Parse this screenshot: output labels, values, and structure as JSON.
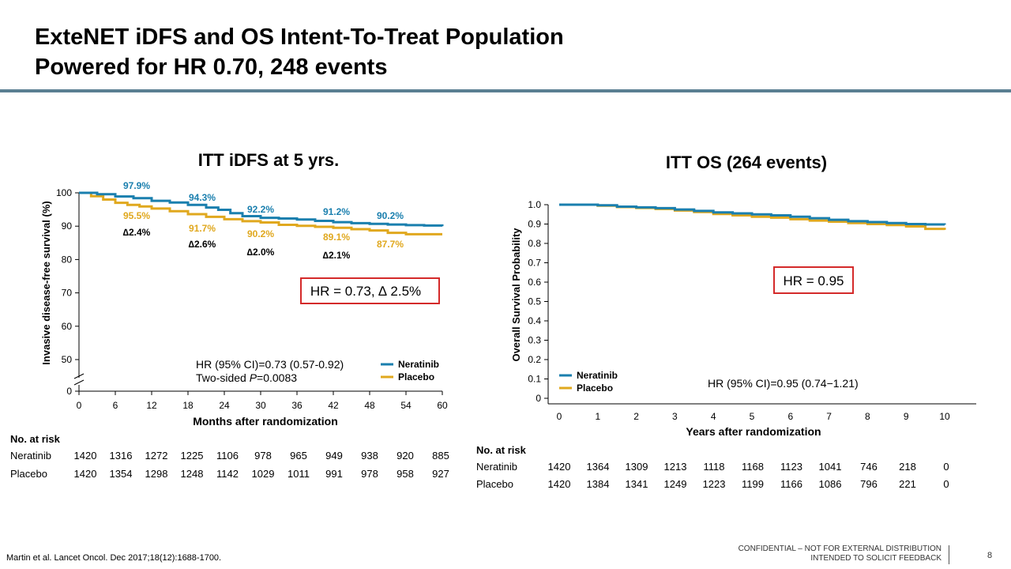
{
  "slide": {
    "title_line1": "ExteNET iDFS and OS Intent-To-Treat Population",
    "title_line2": "Powered for HR 0.70, 248 events",
    "footnote": "Martin et al. Lancet Oncol. Dec 2017;18(12):1688-1700.",
    "confidential_line1": "CONFIDENTIAL – NOT FOR EXTERNAL DISTRIBUTION",
    "confidential_line2": "INTENDED TO SOLICIT FEEDBACK",
    "page_number": "8",
    "rule_color": "#5a7f92"
  },
  "colors": {
    "neratinib": "#1a7fae",
    "placebo": "#e0a81e",
    "hr_box": "#d42a2a"
  },
  "chart_data": [
    {
      "type": "line",
      "title": "ITT iDFS at 5 yrs.",
      "xlabel": "Months after randomization",
      "ylabel": "Invasive disease-free survival (%)",
      "xlim": [
        0,
        60
      ],
      "xticks": [
        0,
        6,
        12,
        18,
        24,
        30,
        36,
        42,
        48,
        54,
        60
      ],
      "yticks": [
        50,
        60,
        70,
        80,
        90,
        100
      ],
      "y_origin_label": "0",
      "axis_break": true,
      "legend": [
        "Neratinib",
        "Placebo"
      ],
      "legend_position": "bottom-right",
      "series": [
        {
          "name": "Neratinib",
          "x": [
            0,
            3,
            6,
            9,
            12,
            15,
            18,
            21,
            23,
            25,
            27,
            30,
            33,
            36,
            39,
            42,
            45,
            48,
            51,
            54,
            57,
            60
          ],
          "y": [
            100,
            99.6,
            98.9,
            98.4,
            97.6,
            97.1,
            96.4,
            95.6,
            94.9,
            93.9,
            93.0,
            92.5,
            92.3,
            92.0,
            91.6,
            91.2,
            90.9,
            90.7,
            90.5,
            90.3,
            90.2,
            90.0
          ]
        },
        {
          "name": "Placebo",
          "x": [
            0,
            2,
            4,
            6,
            8,
            10,
            12,
            15,
            18,
            21,
            24,
            27,
            30,
            33,
            36,
            39,
            42,
            45,
            48,
            51,
            54,
            57,
            60
          ],
          "y": [
            100,
            99.0,
            98.0,
            97.0,
            96.4,
            95.9,
            95.3,
            94.5,
            93.6,
            92.8,
            92.1,
            91.5,
            91.1,
            90.4,
            90.1,
            89.8,
            89.5,
            89.1,
            88.7,
            88.0,
            87.6,
            87.6,
            87.6
          ]
        }
      ],
      "point_labels": [
        {
          "x": 6,
          "nera": "97.9%",
          "plac": "95.5%",
          "delta": "∆2.4%"
        },
        {
          "x": 18,
          "nera": "94.3%",
          "plac": "91.7%",
          "delta": "∆2.6%"
        },
        {
          "x": 30,
          "nera": "92.2%",
          "plac": "90.2%",
          "delta": "∆2.0%"
        },
        {
          "x": 42,
          "nera": "91.2%",
          "plac": "89.1%",
          "delta": "∆2.1%"
        },
        {
          "x": 54,
          "nera": "90.2%",
          "plac": "87.7%",
          "delta": ""
        }
      ],
      "hr_box": "HR = 0.73, ∆ 2.5%",
      "annotation_line1": "HR (95% CI)=0.73 (0.57-0.92)",
      "annotation_line2_prefix": "Two-sided ",
      "annotation_line2_italic": "P",
      "annotation_line2_suffix": "=0.0083",
      "risk_table": {
        "header": "No. at risk",
        "rows": [
          {
            "label": "Neratinib",
            "values": [
              "1420",
              "1316",
              "1272",
              "1225",
              "1106",
              "978",
              "965",
              "949",
              "938",
              "920",
              "885"
            ]
          },
          {
            "label": "Placebo",
            "values": [
              "1420",
              "1354",
              "1298",
              "1248",
              "1142",
              "1029",
              "1011",
              "991",
              "978",
              "958",
              "927"
            ]
          }
        ]
      }
    },
    {
      "type": "line",
      "title": "ITT OS (264 events)",
      "xlabel": "Years after randomization",
      "ylabel": "Overall Survival Probability",
      "xlim": [
        0,
        10
      ],
      "ylim": [
        0,
        1.0
      ],
      "xticks": [
        0,
        1,
        2,
        3,
        4,
        5,
        6,
        7,
        8,
        9,
        10
      ],
      "yticks": [
        "0",
        "0.1",
        "0.2",
        "0.3",
        "0.4",
        "0.5",
        "0.6",
        "0.7",
        "0.8",
        "0.9",
        "1.0"
      ],
      "legend": [
        "Neratinib",
        "Placebo"
      ],
      "legend_position": "bottom-left",
      "series": [
        {
          "name": "Neratinib",
          "x": [
            0,
            0.5,
            1,
            1.5,
            2,
            2.5,
            3,
            3.5,
            4,
            4.5,
            5,
            5.5,
            6,
            6.5,
            7,
            7.5,
            8,
            8.5,
            9,
            9.5,
            10
          ],
          "y": [
            1.0,
            1.0,
            0.997,
            0.99,
            0.986,
            0.982,
            0.975,
            0.968,
            0.96,
            0.955,
            0.95,
            0.945,
            0.938,
            0.93,
            0.922,
            0.915,
            0.91,
            0.905,
            0.9,
            0.898,
            0.896
          ]
        },
        {
          "name": "Placebo",
          "x": [
            0,
            0.5,
            1,
            1.5,
            2,
            2.5,
            3,
            3.5,
            4,
            4.5,
            5,
            5.5,
            6,
            6.5,
            7,
            7.5,
            8,
            8.5,
            9,
            9.5,
            10
          ],
          "y": [
            1.0,
            1.0,
            0.995,
            0.988,
            0.983,
            0.978,
            0.97,
            0.962,
            0.952,
            0.945,
            0.938,
            0.933,
            0.925,
            0.918,
            0.912,
            0.905,
            0.9,
            0.895,
            0.888,
            0.875,
            0.87
          ]
        }
      ],
      "hr_box": "HR = 0.95",
      "annotation_line1": "HR (95% CI)=0.95 (0.74−1.21)",
      "risk_table": {
        "header": "No. at risk",
        "rows": [
          {
            "label": "Neratinib",
            "values": [
              "1420",
              "1364",
              "1309",
              "1213",
              "1118",
              "1168",
              "1123",
              "1041",
              "746",
              "218",
              "0"
            ]
          },
          {
            "label": "Placebo",
            "values": [
              "1420",
              "1384",
              "1341",
              "1249",
              "1223",
              "1199",
              "1166",
              "1086",
              "796",
              "221",
              "0"
            ]
          }
        ]
      }
    }
  ]
}
